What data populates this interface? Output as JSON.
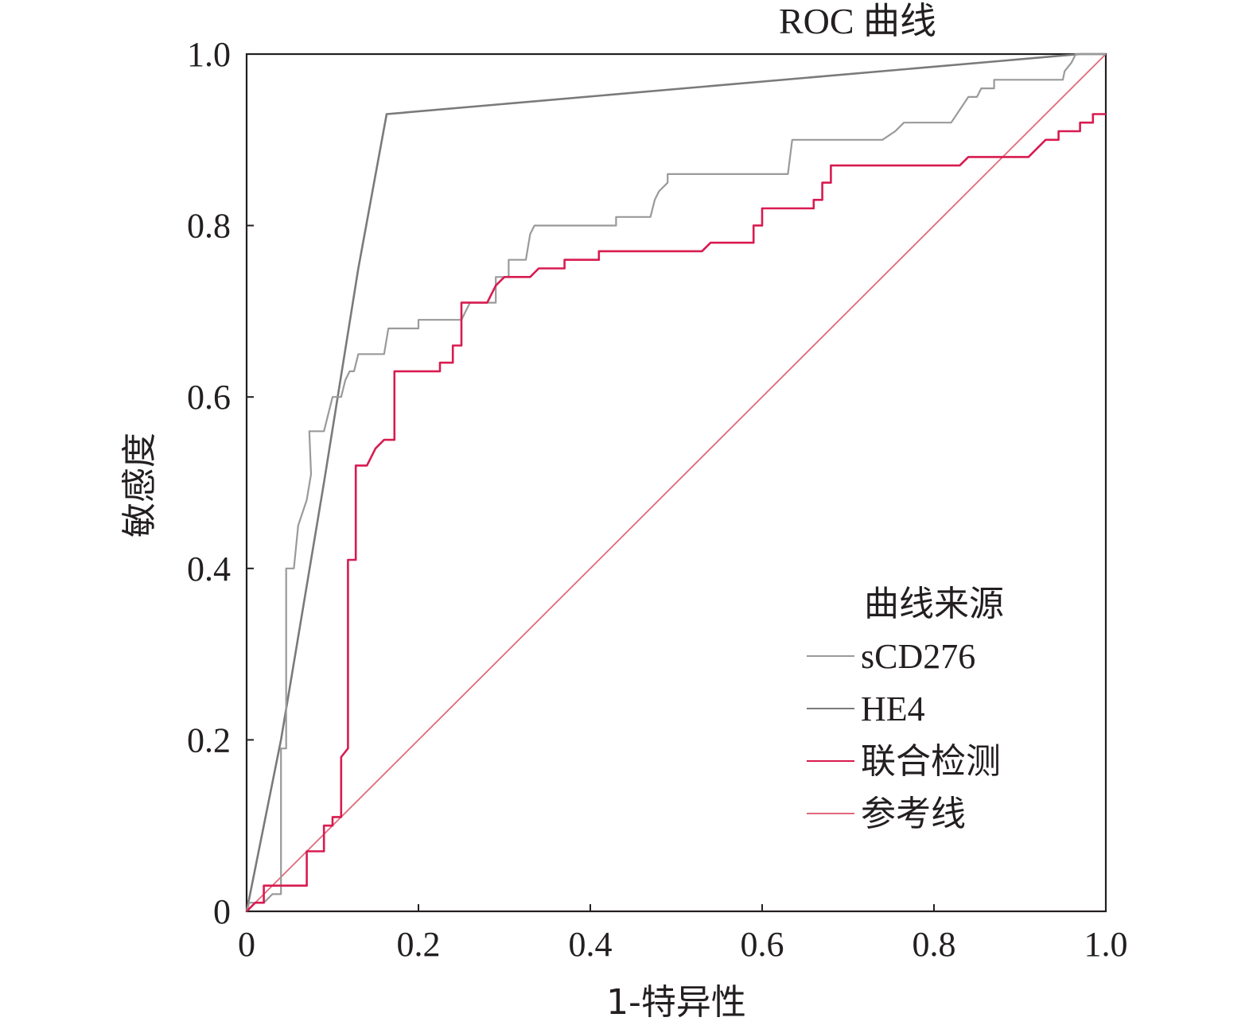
{
  "chart_data": {
    "type": "line",
    "title": "ROC 曲线",
    "xlabel": "1-特异性",
    "ylabel": "敏感度",
    "xlim": [
      0,
      1
    ],
    "ylim": [
      0,
      1
    ],
    "x_ticks": [
      "0",
      "0.2",
      "0.4",
      "0.6",
      "0.8",
      "1.0"
    ],
    "y_ticks": [
      "0",
      "0.2",
      "0.4",
      "0.6",
      "0.8",
      "1.0"
    ],
    "grid": false,
    "legend_position": "bottom-right",
    "legend_title": "曲线来源",
    "series": [
      {
        "name": "sCD276",
        "color": "#9a9a9a",
        "points": [
          [
            0,
            0
          ],
          [
            0.003,
            0.01
          ],
          [
            0.02,
            0.01
          ],
          [
            0.03,
            0.02
          ],
          [
            0.04,
            0.02
          ],
          [
            0.04,
            0.19
          ],
          [
            0.046,
            0.19
          ],
          [
            0.046,
            0.4
          ],
          [
            0.055,
            0.4
          ],
          [
            0.06,
            0.45
          ],
          [
            0.07,
            0.48
          ],
          [
            0.075,
            0.51
          ],
          [
            0.073,
            0.56
          ],
          [
            0.09,
            0.56
          ],
          [
            0.095,
            0.58
          ],
          [
            0.1,
            0.6
          ],
          [
            0.11,
            0.6
          ],
          [
            0.115,
            0.62
          ],
          [
            0.12,
            0.63
          ],
          [
            0.125,
            0.63
          ],
          [
            0.13,
            0.65
          ],
          [
            0.16,
            0.65
          ],
          [
            0.165,
            0.68
          ],
          [
            0.2,
            0.68
          ],
          [
            0.2,
            0.69
          ],
          [
            0.25,
            0.69
          ],
          [
            0.255,
            0.7
          ],
          [
            0.26,
            0.71
          ],
          [
            0.29,
            0.71
          ],
          [
            0.29,
            0.74
          ],
          [
            0.305,
            0.74
          ],
          [
            0.305,
            0.76
          ],
          [
            0.325,
            0.76
          ],
          [
            0.33,
            0.79
          ],
          [
            0.335,
            0.8
          ],
          [
            0.43,
            0.8
          ],
          [
            0.43,
            0.81
          ],
          [
            0.47,
            0.81
          ],
          [
            0.475,
            0.83
          ],
          [
            0.48,
            0.84
          ],
          [
            0.49,
            0.85
          ],
          [
            0.49,
            0.86
          ],
          [
            0.63,
            0.86
          ],
          [
            0.635,
            0.9
          ],
          [
            0.74,
            0.9
          ],
          [
            0.755,
            0.91
          ],
          [
            0.765,
            0.92
          ],
          [
            0.82,
            0.92
          ],
          [
            0.84,
            0.95
          ],
          [
            0.85,
            0.95
          ],
          [
            0.855,
            0.96
          ],
          [
            0.87,
            0.96
          ],
          [
            0.87,
            0.97
          ],
          [
            0.95,
            0.97
          ],
          [
            0.952,
            0.98
          ],
          [
            0.96,
            0.99
          ],
          [
            0.965,
            1.0
          ],
          [
            1,
            1.0
          ]
        ]
      },
      {
        "name": "HE4",
        "color": "#7a7a7a",
        "points": [
          [
            0,
            0
          ],
          [
            0.01,
            0.05
          ],
          [
            0.04,
            0.2
          ],
          [
            0.09,
            0.5
          ],
          [
            0.13,
            0.75
          ],
          [
            0.163,
            0.93
          ],
          [
            0.97,
            1.0
          ],
          [
            1,
            1.0
          ]
        ]
      },
      {
        "name": "联合检测",
        "color": "#d81b50",
        "points": [
          [
            0,
            0
          ],
          [
            0.01,
            0.01
          ],
          [
            0.02,
            0.01
          ],
          [
            0.02,
            0.03
          ],
          [
            0.07,
            0.03
          ],
          [
            0.07,
            0.07
          ],
          [
            0.09,
            0.07
          ],
          [
            0.09,
            0.1
          ],
          [
            0.1,
            0.1
          ],
          [
            0.1,
            0.11
          ],
          [
            0.11,
            0.11
          ],
          [
            0.11,
            0.18
          ],
          [
            0.118,
            0.19
          ],
          [
            0.118,
            0.41
          ],
          [
            0.127,
            0.41
          ],
          [
            0.127,
            0.52
          ],
          [
            0.14,
            0.52
          ],
          [
            0.15,
            0.54
          ],
          [
            0.16,
            0.55
          ],
          [
            0.172,
            0.55
          ],
          [
            0.172,
            0.63
          ],
          [
            0.225,
            0.63
          ],
          [
            0.225,
            0.64
          ],
          [
            0.24,
            0.64
          ],
          [
            0.24,
            0.66
          ],
          [
            0.25,
            0.66
          ],
          [
            0.25,
            0.71
          ],
          [
            0.28,
            0.71
          ],
          [
            0.29,
            0.73
          ],
          [
            0.3,
            0.74
          ],
          [
            0.33,
            0.74
          ],
          [
            0.34,
            0.75
          ],
          [
            0.37,
            0.75
          ],
          [
            0.37,
            0.76
          ],
          [
            0.41,
            0.76
          ],
          [
            0.41,
            0.77
          ],
          [
            0.53,
            0.77
          ],
          [
            0.54,
            0.78
          ],
          [
            0.59,
            0.78
          ],
          [
            0.59,
            0.8
          ],
          [
            0.6,
            0.8
          ],
          [
            0.6,
            0.82
          ],
          [
            0.66,
            0.82
          ],
          [
            0.66,
            0.83
          ],
          [
            0.67,
            0.83
          ],
          [
            0.67,
            0.85
          ],
          [
            0.68,
            0.85
          ],
          [
            0.68,
            0.87
          ],
          [
            0.83,
            0.87
          ],
          [
            0.84,
            0.88
          ],
          [
            0.91,
            0.88
          ],
          [
            0.92,
            0.89
          ],
          [
            0.93,
            0.9
          ],
          [
            0.945,
            0.9
          ],
          [
            0.945,
            0.91
          ],
          [
            0.97,
            0.91
          ],
          [
            0.97,
            0.92
          ],
          [
            0.985,
            0.92
          ],
          [
            0.985,
            0.93
          ],
          [
            1,
            0.93
          ]
        ]
      },
      {
        "name": "参考线",
        "color": "#e06a7a",
        "points": [
          [
            0,
            0
          ],
          [
            1,
            1
          ]
        ]
      }
    ]
  }
}
